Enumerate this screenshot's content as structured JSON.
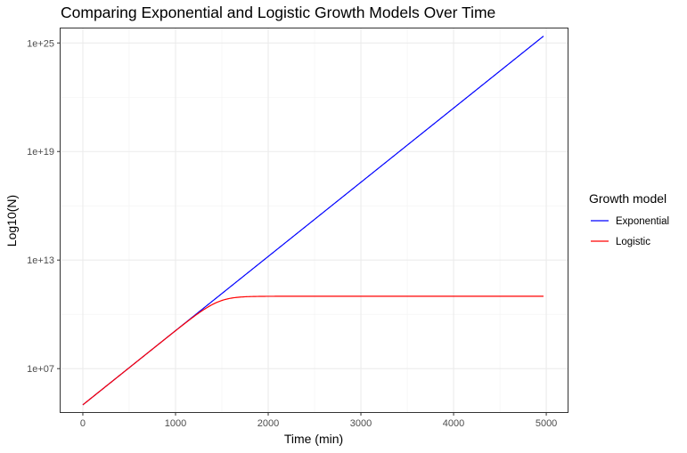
{
  "chart_data": {
    "type": "line",
    "title": "Comparing Exponential and Logistic Growth Models Over Time",
    "xlabel": "Time (min)",
    "ylabel": "Log10(N)",
    "y_scale": "log10",
    "xlim": [
      -240,
      5230
    ],
    "ylim_log10": [
      4.6,
      25.8
    ],
    "x_ticks": [
      0,
      1000,
      2000,
      3000,
      4000,
      5000
    ],
    "x_tick_labels": [
      "0",
      "1000",
      "2000",
      "3000",
      "4000",
      "5000"
    ],
    "y_ticks_log10": [
      7,
      13,
      19,
      25
    ],
    "y_tick_labels": [
      "1e+07",
      "1e+13",
      "1e+19",
      "1e+25"
    ],
    "grid": true,
    "legend": {
      "title": "Growth model",
      "position": "right"
    },
    "series": [
      {
        "name": "Exponential",
        "color": "#0000ff",
        "model": "exponential",
        "N0": 100000,
        "log10_rate_per_min": 0.0041,
        "x_range": [
          0,
          4970
        ]
      },
      {
        "name": "Logistic",
        "color": "#ff0000",
        "model": "logistic",
        "N0": 100000,
        "log10_rate_per_min": 0.0041,
        "carrying_capacity": 100000000000.0,
        "x_range": [
          0,
          4970
        ]
      }
    ]
  }
}
